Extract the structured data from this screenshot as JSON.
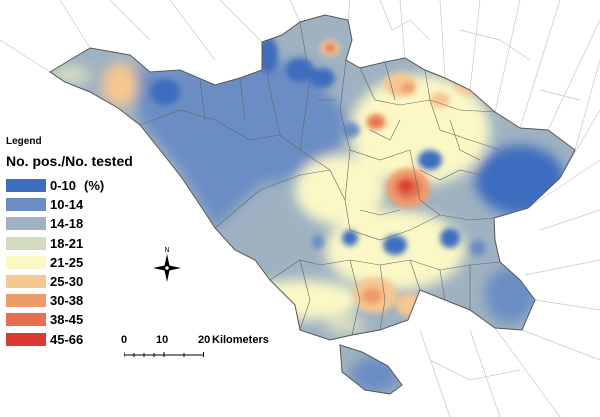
{
  "legend": {
    "title": "Legend",
    "heading": "No. pos./No. tested",
    "unit": "(%)",
    "classes": [
      {
        "label": "0-10",
        "color": "#3e6dbf"
      },
      {
        "label": "10-14",
        "color": "#6b8dc4"
      },
      {
        "label": "14-18",
        "color": "#9fb2c2"
      },
      {
        "label": "18-21",
        "color": "#d3dbc1"
      },
      {
        "label": "21-25",
        "color": "#fbf8c6"
      },
      {
        "label": "25-30",
        "color": "#f6c791"
      },
      {
        "label": "30-38",
        "color": "#ee9b6c"
      },
      {
        "label": "38-45",
        "color": "#e4704f"
      },
      {
        "label": "45-66",
        "color": "#d83a2f"
      }
    ]
  },
  "north_arrow": {
    "label": "N"
  },
  "scale": {
    "ticks": [
      "0",
      "10",
      "20"
    ],
    "unit": "Kilometers"
  }
}
